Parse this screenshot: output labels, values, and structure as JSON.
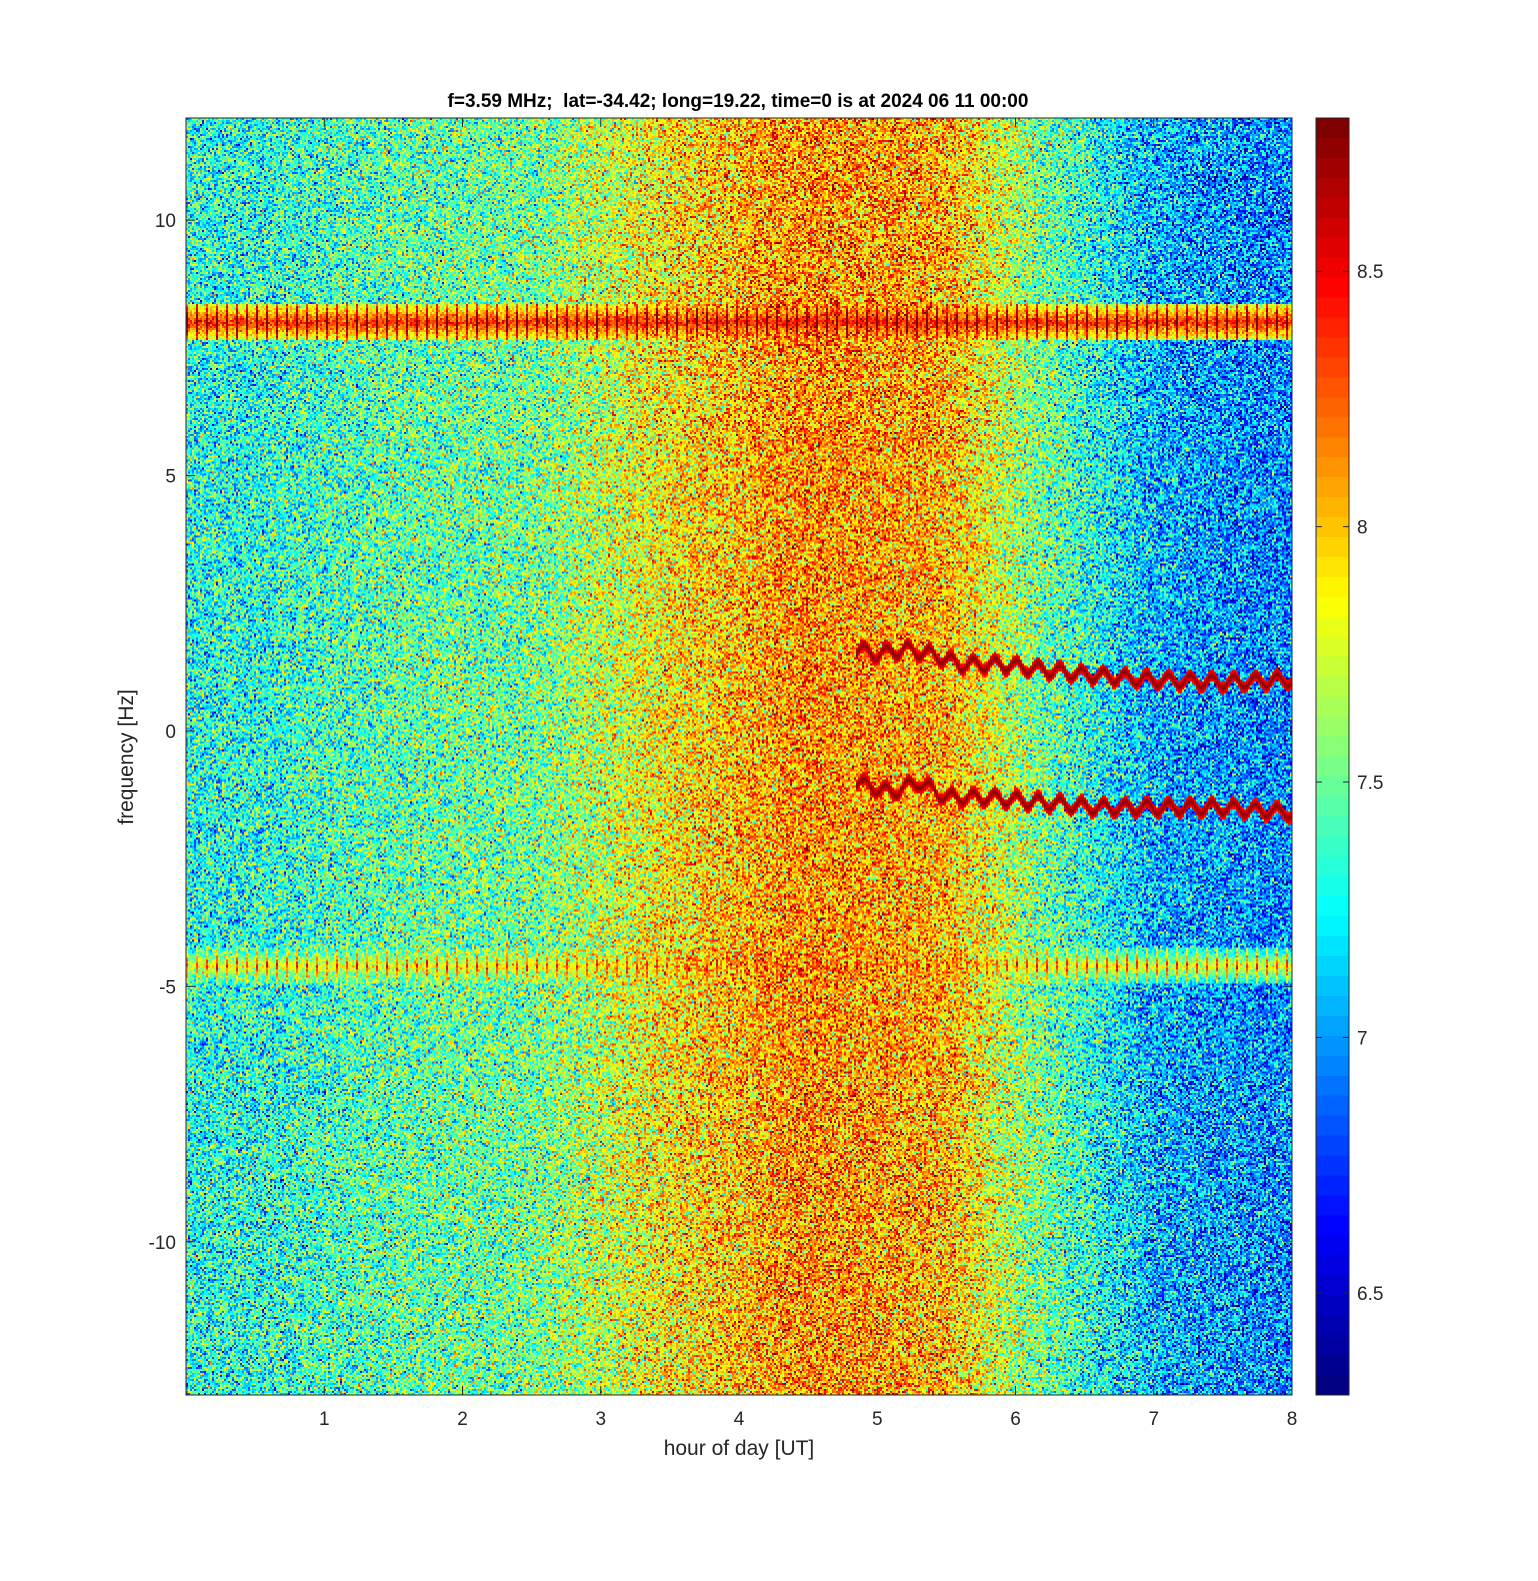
{
  "chart_data": {
    "type": "heatmap",
    "title": "f=3.59 MHz;  lat=-34.42; long=19.22, time=0 is at 2024 06 11 00:00",
    "xlabel": "hour of day [UT]",
    "ylabel": "frequency [Hz]",
    "xlim": [
      0,
      8
    ],
    "ylim": [
      -13,
      12
    ],
    "xticks": [
      1,
      2,
      3,
      4,
      5,
      6,
      7,
      8
    ],
    "xtick_labels": [
      "1",
      "2",
      "3",
      "4",
      "5",
      "6",
      "7",
      "8"
    ],
    "yticks": [
      10,
      5,
      0,
      -5,
      -10
    ],
    "ytick_labels": [
      "10",
      "5",
      "0",
      "-5",
      "-10"
    ],
    "colorbar": {
      "colormap": "jet",
      "clim": [
        6.3,
        8.8
      ],
      "ticks": [
        8.5,
        8,
        7.5,
        7,
        6.5
      ],
      "tick_labels": [
        "8.5",
        "8",
        "7.5",
        "7",
        "6.5"
      ]
    },
    "background_level_by_hour": [
      {
        "hour": 0.5,
        "level": 7.3
      },
      {
        "hour": 1.5,
        "level": 7.45
      },
      {
        "hour": 2.5,
        "level": 7.5
      },
      {
        "hour": 3.5,
        "level": 7.9
      },
      {
        "hour": 4.5,
        "level": 8.15
      },
      {
        "hour": 5.5,
        "level": 8.05
      },
      {
        "hour": 6.2,
        "level": 7.5
      },
      {
        "hour": 7.0,
        "level": 7.05
      },
      {
        "hour": 7.8,
        "level": 6.95
      }
    ],
    "features": [
      {
        "kind": "horizontal band",
        "frequency_hz": 8,
        "hours": [
          0,
          8
        ],
        "level": 8.8
      },
      {
        "kind": "horizontal band",
        "frequency_hz": -4.6,
        "hours": [
          0,
          8
        ],
        "level": 8.2
      },
      {
        "kind": "trace",
        "level": 8.8,
        "points": [
          [
            4.85,
            1.6
          ],
          [
            5.0,
            1.5
          ],
          [
            5.2,
            1.6
          ],
          [
            5.4,
            1.5
          ],
          [
            5.6,
            1.3
          ],
          [
            5.9,
            1.3
          ],
          [
            6.2,
            1.2
          ],
          [
            6.5,
            1.1
          ],
          [
            7.0,
            1.0
          ],
          [
            7.5,
            0.95
          ],
          [
            8.0,
            1.0
          ]
        ]
      },
      {
        "kind": "trace",
        "level": 8.8,
        "points": [
          [
            4.85,
            -1.0
          ],
          [
            5.1,
            -1.2
          ],
          [
            5.3,
            -1.0
          ],
          [
            5.5,
            -1.3
          ],
          [
            5.8,
            -1.3
          ],
          [
            6.2,
            -1.4
          ],
          [
            6.6,
            -1.5
          ],
          [
            7.0,
            -1.5
          ],
          [
            7.5,
            -1.5
          ],
          [
            8.0,
            -1.6
          ]
        ]
      }
    ]
  }
}
